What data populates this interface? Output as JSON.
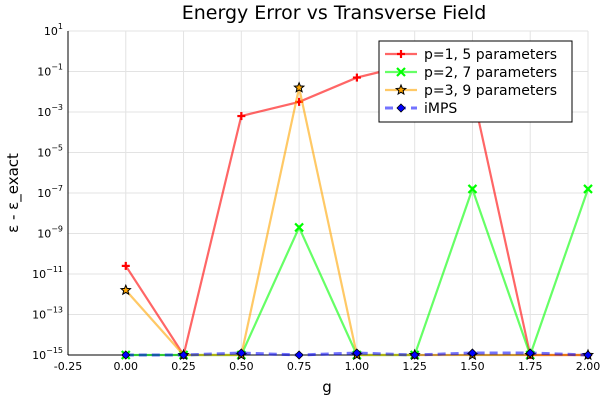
{
  "chart_data": {
    "type": "line",
    "title": "Energy Error vs Transverse Field",
    "xlabel": "g",
    "ylabel": "ε - ε_exact",
    "xlim": [
      -0.25,
      2.0
    ],
    "ylim_exponent": [
      -15,
      1
    ],
    "yscale": "log",
    "grid": true,
    "legend_position": "top-right",
    "x_ticks": [
      "-0.25",
      "0.00",
      "0.25",
      "0.50",
      "0.75",
      "1.00",
      "1.25",
      "1.50",
      "1.75",
      "2.00"
    ],
    "x_tick_values": [
      -0.25,
      0.0,
      0.25,
      0.5,
      0.75,
      1.0,
      1.25,
      1.5,
      1.75,
      2.0
    ],
    "y_tick_exponents": [
      1,
      -1,
      -3,
      -5,
      -7,
      -9,
      -11,
      -13,
      -15
    ],
    "y_tick_base": "10",
    "x": [
      0.0,
      0.25,
      0.5,
      0.75,
      1.0,
      1.25,
      1.5,
      1.75,
      2.0
    ],
    "series": [
      {
        "name": "p=1, 5 parameters",
        "color": "#ff0000",
        "marker": "plus",
        "log10_values": [
          -10.6,
          -15,
          -3.2,
          -2.5,
          -1.3,
          -0.6,
          -2.0,
          -15,
          -15
        ]
      },
      {
        "name": "p=2, 7 parameters",
        "color": "#00ff00",
        "marker": "x",
        "log10_values": [
          -15,
          -15,
          -15,
          -8.7,
          -15,
          -15,
          -6.8,
          -15,
          -6.8
        ]
      },
      {
        "name": "p=3, 9 parameters",
        "color": "#ffa500",
        "marker": "star",
        "log10_values": [
          -11.8,
          -15,
          -15,
          -1.8,
          -15,
          -15,
          -15,
          -15,
          -15
        ]
      },
      {
        "name": "iMPS",
        "color": "#0000ff",
        "marker": "diamond",
        "dashed": true,
        "log10_values": [
          -15,
          -15,
          -14.9,
          -15,
          -14.9,
          -15,
          -14.9,
          -14.9,
          -15
        ]
      }
    ]
  }
}
